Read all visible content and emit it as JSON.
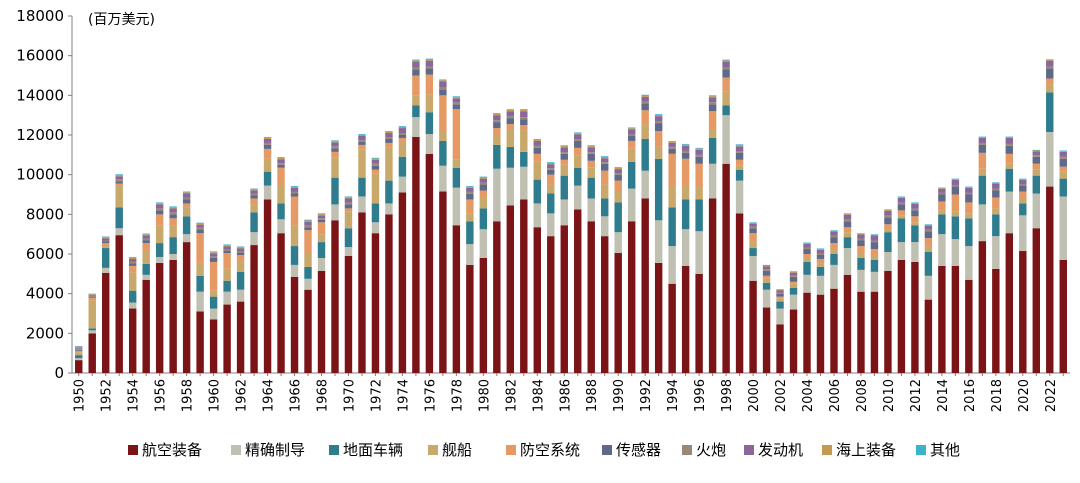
{
  "chart_data": {
    "type": "bar",
    "stacked": true,
    "title": "",
    "unit_label": "(百万美元)",
    "xlabel": "",
    "ylabel": "",
    "ylim": [
      0,
      18000
    ],
    "yticks": [
      0,
      2000,
      4000,
      6000,
      8000,
      10000,
      12000,
      14000,
      16000,
      18000
    ],
    "grid": false,
    "legend_position": "bottom",
    "categories": [
      1950,
      1951,
      1952,
      1953,
      1954,
      1955,
      1956,
      1957,
      1958,
      1959,
      1960,
      1961,
      1962,
      1963,
      1964,
      1965,
      1966,
      1967,
      1968,
      1969,
      1970,
      1971,
      1972,
      1973,
      1974,
      1975,
      1976,
      1977,
      1978,
      1979,
      1980,
      1981,
      1982,
      1983,
      1984,
      1985,
      1986,
      1987,
      1988,
      1989,
      1990,
      1991,
      1992,
      1993,
      1994,
      1995,
      1996,
      1997,
      1998,
      1999,
      2000,
      2001,
      2002,
      2003,
      2004,
      2005,
      2006,
      2007,
      2008,
      2009,
      2010,
      2011,
      2012,
      2013,
      2014,
      2015,
      2016,
      2017,
      2018,
      2019,
      2020,
      2021,
      2022,
      2023
    ],
    "xtick_labels": [
      "1950",
      "1952",
      "1954",
      "1956",
      "1958",
      "1960",
      "1962",
      "1964",
      "1966",
      "1968",
      "1970",
      "1972",
      "1974",
      "1976",
      "1978",
      "1980",
      "1982",
      "1984",
      "1986",
      "1988",
      "1990",
      "1992",
      "1994",
      "1996",
      "1998",
      "2000",
      "2002",
      "2004",
      "2006",
      "2008",
      "2010",
      "2012",
      "2014",
      "2016",
      "2018",
      "2020",
      "2022"
    ],
    "series": [
      {
        "name": "航空装备",
        "color": "#7B1416",
        "values": [
          650,
          2000,
          5050,
          6950,
          3250,
          4700,
          5550,
          5700,
          6600,
          3100,
          2700,
          3450,
          3600,
          6450,
          8750,
          7050,
          4850,
          4200,
          5150,
          7700,
          5900,
          8100,
          7050,
          8000,
          9100,
          11900,
          11050,
          9150,
          7450,
          5450,
          5800,
          7650,
          8450,
          8750,
          7350,
          6900,
          7450,
          8250,
          7650,
          6900,
          6050,
          7650,
          8800,
          5550,
          4500,
          5400,
          5000,
          8800,
          10550,
          8050,
          4650,
          3300,
          2450,
          3200,
          4050,
          3950,
          4250,
          4950,
          4100,
          4100,
          5150,
          5700,
          5600,
          3700,
          5400,
          5400,
          4700,
          6650,
          5250,
          7050,
          6150,
          7300,
          9400,
          5700
        ]
      },
      {
        "name": "精确制导",
        "color": "#BFBFB2",
        "values": [
          100,
          150,
          250,
          350,
          300,
          250,
          300,
          300,
          400,
          1000,
          550,
          650,
          600,
          650,
          700,
          700,
          600,
          550,
          650,
          800,
          450,
          800,
          550,
          550,
          800,
          1000,
          1000,
          1300,
          1900,
          1050,
          1450,
          2650,
          1900,
          1650,
          1200,
          1150,
          1300,
          1200,
          1150,
          1000,
          1050,
          1650,
          1400,
          2150,
          1900,
          1850,
          2150,
          1750,
          2450,
          1650,
          1250,
          900,
          800,
          750,
          900,
          950,
          1200,
          1350,
          1100,
          1000,
          950,
          900,
          1000,
          1200,
          1600,
          1350,
          1700,
          1850,
          1650,
          2100,
          1800,
          1750,
          2750,
          3200
        ]
      },
      {
        "name": "地面车辆",
        "color": "#2E7C8E",
        "values": [
          150,
          100,
          1000,
          1050,
          600,
          550,
          700,
          850,
          900,
          800,
          600,
          550,
          900,
          1000,
          700,
          800,
          950,
          600,
          800,
          1350,
          950,
          950,
          950,
          1150,
          1000,
          600,
          1100,
          1250,
          1000,
          1150,
          1050,
          1200,
          1050,
          750,
          1200,
          1000,
          1200,
          900,
          1050,
          900,
          1500,
          1350,
          1600,
          3100,
          1950,
          1500,
          1600,
          1300,
          500,
          550,
          400,
          350,
          350,
          350,
          650,
          450,
          550,
          550,
          600,
          600,
          1000,
          1200,
          850,
          1200,
          1000,
          1150,
          1400,
          1450,
          1100,
          1150,
          600,
          900,
          2000,
          900
        ]
      },
      {
        "name": "舰船",
        "color": "#C8A86B",
        "values": [
          150,
          1400,
          100,
          1100,
          900,
          650,
          900,
          600,
          450,
          600,
          300,
          600,
          500,
          400,
          650,
          900,
          1050,
          650,
          400,
          1000,
          850,
          1400,
          1500,
          1650,
          800,
          500,
          900,
          500,
          400,
          400,
          550,
          500,
          900,
          1100,
          900,
          450,
          550,
          600,
          500,
          700,
          550,
          650,
          750,
          600,
          1050,
          700,
          600,
          450,
          700,
          200,
          300,
          200,
          150,
          200,
          200,
          150,
          200,
          250,
          200,
          250,
          150,
          150,
          150,
          300,
          200,
          250,
          250,
          350,
          300,
          250,
          300,
          300,
          400,
          350
        ]
      },
      {
        "name": "防空系统",
        "color": "#E59A66",
        "values": [
          50,
          150,
          150,
          100,
          350,
          400,
          550,
          350,
          200,
          1550,
          1450,
          800,
          350,
          300,
          500,
          900,
          1450,
          1200,
          600,
          300,
          150,
          250,
          200,
          250,
          150,
          1000,
          1000,
          1800,
          2550,
          700,
          350,
          350,
          250,
          250,
          400,
          500,
          250,
          400,
          350,
          700,
          550,
          400,
          700,
          800,
          1650,
          1350,
          1200,
          900,
          700,
          300,
          450,
          150,
          100,
          100,
          200,
          250,
          350,
          250,
          400,
          300,
          250,
          250,
          300,
          400,
          450,
          850,
          550,
          800,
          550,
          500,
          300,
          300,
          300,
          250
        ]
      },
      {
        "name": "传感器",
        "color": "#5F6A8A",
        "values": [
          50,
          50,
          80,
          120,
          120,
          150,
          200,
          200,
          200,
          200,
          200,
          100,
          100,
          150,
          200,
          150,
          150,
          150,
          120,
          180,
          200,
          150,
          200,
          200,
          150,
          300,
          300,
          300,
          250,
          280,
          300,
          300,
          300,
          300,
          300,
          250,
          300,
          350,
          350,
          350,
          300,
          250,
          350,
          400,
          250,
          300,
          350,
          350,
          400,
          350,
          250,
          250,
          150,
          250,
          250,
          200,
          300,
          300,
          300,
          350,
          350,
          300,
          300,
          350,
          350,
          400,
          400,
          400,
          350,
          400,
          300,
          350,
          500,
          400
        ]
      },
      {
        "name": "火炮",
        "color": "#998877",
        "values": [
          50,
          50,
          50,
          100,
          80,
          80,
          100,
          100,
          100,
          80,
          80,
          80,
          80,
          100,
          100,
          80,
          80,
          80,
          80,
          100,
          100,
          100,
          100,
          100,
          100,
          100,
          100,
          100,
          100,
          100,
          100,
          100,
          100,
          100,
          100,
          80,
          80,
          80,
          80,
          80,
          80,
          80,
          80,
          100,
          100,
          100,
          100,
          100,
          100,
          80,
          80,
          80,
          60,
          60,
          60,
          60,
          80,
          80,
          80,
          80,
          80,
          80,
          80,
          80,
          80,
          80,
          80,
          100,
          100,
          100,
          80,
          80,
          100,
          100
        ]
      },
      {
        "name": "发动机",
        "color": "#8A679A",
        "values": [
          50,
          50,
          100,
          150,
          150,
          150,
          200,
          200,
          200,
          150,
          150,
          150,
          150,
          150,
          200,
          200,
          200,
          200,
          150,
          200,
          200,
          200,
          200,
          200,
          250,
          300,
          300,
          300,
          200,
          200,
          200,
          250,
          250,
          300,
          250,
          200,
          250,
          250,
          250,
          200,
          200,
          250,
          250,
          250,
          200,
          250,
          250,
          250,
          300,
          250,
          150,
          150,
          100,
          150,
          200,
          200,
          200,
          250,
          200,
          250,
          250,
          250,
          250,
          200,
          200,
          250,
          250,
          250,
          250,
          300,
          200,
          200,
          300,
          250
        ]
      },
      {
        "name": "海上装备",
        "color": "#C49A52",
        "values": [
          80,
          30,
          60,
          60,
          60,
          60,
          60,
          60,
          60,
          60,
          60,
          60,
          60,
          60,
          60,
          60,
          60,
          60,
          60,
          60,
          60,
          60,
          60,
          60,
          60,
          60,
          60,
          60,
          60,
          60,
          60,
          60,
          60,
          60,
          60,
          60,
          60,
          60,
          60,
          60,
          60,
          60,
          60,
          60,
          60,
          60,
          60,
          60,
          60,
          60,
          40,
          40,
          40,
          40,
          40,
          40,
          40,
          40,
          40,
          40,
          40,
          40,
          40,
          40,
          40,
          40,
          40,
          40,
          40,
          40,
          40,
          40,
          40,
          40
        ]
      },
      {
        "name": "其他",
        "color": "#3BB3CB",
        "values": [
          30,
          20,
          40,
          40,
          40,
          40,
          40,
          40,
          40,
          40,
          40,
          40,
          40,
          40,
          40,
          40,
          40,
          40,
          40,
          40,
          40,
          40,
          40,
          40,
          40,
          40,
          40,
          40,
          40,
          40,
          40,
          40,
          40,
          40,
          40,
          40,
          40,
          40,
          40,
          40,
          40,
          40,
          40,
          40,
          40,
          40,
          40,
          40,
          40,
          40,
          30,
          30,
          30,
          30,
          30,
          30,
          30,
          30,
          30,
          30,
          30,
          30,
          30,
          30,
          30,
          30,
          30,
          30,
          30,
          30,
          30,
          30,
          30,
          30
        ]
      }
    ]
  }
}
